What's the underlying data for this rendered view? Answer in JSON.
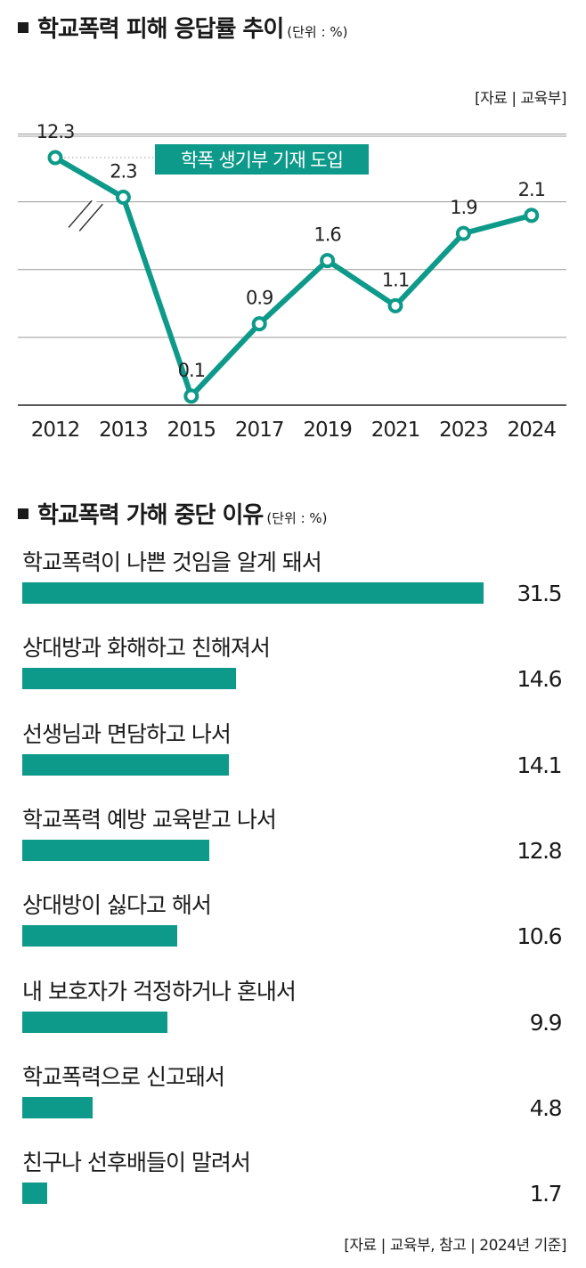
{
  "charts": {
    "line": {
      "title": "학교폭력 피해 응답률 추이",
      "unit": "(단위 : %)",
      "source": "[자료 | 교육부]",
      "annotation": "학폭 생기부 기재 도입"
    },
    "bar": {
      "title": "학교폭력 가해 중단 이유",
      "unit": "(단위 : %)",
      "source": "[자료 | 교육부, 참고 | 2024년 기준]"
    }
  },
  "chart_data": [
    {
      "type": "line",
      "title": "학교폭력 피해 응답률 추이",
      "unit": "%",
      "categories": [
        "2012",
        "2013",
        "2015",
        "2017",
        "2019",
        "2021",
        "2023",
        "2024"
      ],
      "values": [
        12.3,
        2.3,
        0.1,
        0.9,
        1.6,
        1.1,
        1.9,
        2.1
      ],
      "value_labels": [
        "12.3",
        "2.3",
        "0.1",
        "0.9",
        "1.6",
        "1.1",
        "1.9",
        "2.1"
      ],
      "axis_break": "between 2012 and 2013",
      "ylim": [
        0,
        3
      ],
      "gridlines": [
        0,
        0.75,
        1.5,
        2.25,
        3
      ],
      "color": "#0e9a8a",
      "annotation": {
        "text": "학폭 생기부 기재 도입",
        "at": "2012"
      }
    },
    {
      "type": "bar",
      "orientation": "horizontal",
      "title": "학교폭력 가해 중단 이유",
      "unit": "%",
      "categories": [
        "학교폭력이 나쁜 것임을 알게 돼서",
        "상대방과 화해하고 친해져서",
        "선생님과 면담하고 나서",
        "학교폭력 예방 교육받고 나서",
        "상대방이 싫다고 해서",
        "내 보호자가 걱정하거나 혼내서",
        "학교폭력으로 신고돼서",
        "친구나 선후배들이 말려서"
      ],
      "values": [
        31.5,
        14.6,
        14.1,
        12.8,
        10.6,
        9.9,
        4.8,
        1.7
      ],
      "value_labels": [
        "31.5",
        "14.6",
        "14.1",
        "12.8",
        "10.6",
        "9.9",
        "4.8",
        "1.7"
      ],
      "color": "#0e9a8a"
    }
  ]
}
